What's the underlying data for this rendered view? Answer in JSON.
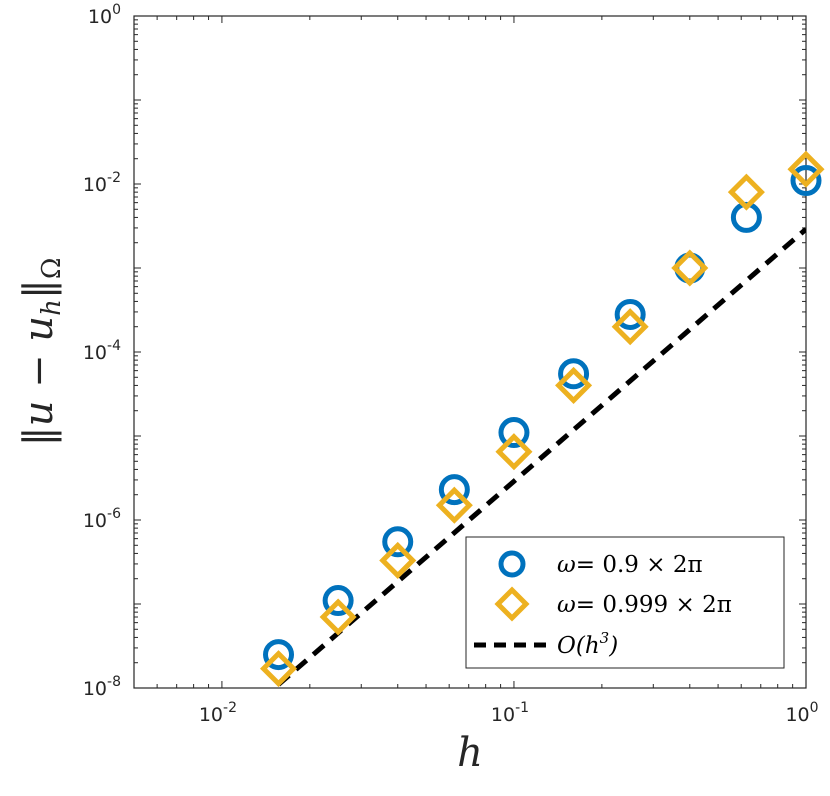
{
  "chart_data": {
    "type": "scatter",
    "xscale": "log",
    "yscale": "log",
    "xlim": [
      0.005,
      1
    ],
    "ylim": [
      1e-08,
      1
    ],
    "xlabel": "h",
    "ylabel": "||u − u_h||_Ω",
    "xticks": [
      {
        "value": 0.01,
        "base": "10",
        "exp": "-2"
      },
      {
        "value": 0.1,
        "base": "10",
        "exp": "-1"
      },
      {
        "value": 1,
        "base": "10",
        "exp": "0"
      }
    ],
    "yticks": [
      {
        "value": 1e-08,
        "base": "10",
        "exp": "-8"
      },
      {
        "value": 1e-06,
        "base": "10",
        "exp": "-6"
      },
      {
        "value": 0.0001,
        "base": "10",
        "exp": "-4"
      },
      {
        "value": 0.01,
        "base": "10",
        "exp": "-2"
      },
      {
        "value": 1,
        "base": "10",
        "exp": "0"
      }
    ],
    "series": [
      {
        "name": "ω = 0.9 × 2π",
        "marker": "circle",
        "color": "#0072BD",
        "x": [
          0.015625,
          0.025,
          0.04,
          0.0625,
          0.1,
          0.16,
          0.25,
          0.4,
          0.625,
          1.0
        ],
        "y": [
          2.5e-08,
          1.1e-07,
          5.5e-07,
          2.3e-06,
          1.1e-05,
          5.5e-05,
          0.00028,
          0.001,
          0.004,
          0.011
        ]
      },
      {
        "name": "ω = 0.999 × 2π",
        "marker": "diamond",
        "color": "#EDB120",
        "x": [
          0.015625,
          0.025,
          0.04,
          0.0625,
          0.1,
          0.16,
          0.25,
          0.4,
          0.625,
          1.0
        ],
        "y": [
          1.7e-08,
          7e-08,
          3.3e-07,
          1.5e-06,
          6.5e-06,
          4e-05,
          0.0002,
          0.001,
          0.008,
          0.015
        ]
      },
      {
        "name": "O(h³)",
        "marker": "none",
        "line": "dashed",
        "color": "#000000",
        "x": [
          0.015625,
          1.0
        ],
        "y": [
          1.1e-08,
          0.0029
        ]
      }
    ],
    "legend_position": "bottom-right",
    "legend": {
      "entries": [
        {
          "lhs": "ω",
          "rhs": "= 0.9 × 2π"
        },
        {
          "lhs": "ω",
          "rhs": "= 0.999 × 2π"
        },
        {
          "lhs": "O(h",
          "sup": "3",
          "tail": ")"
        }
      ]
    }
  }
}
